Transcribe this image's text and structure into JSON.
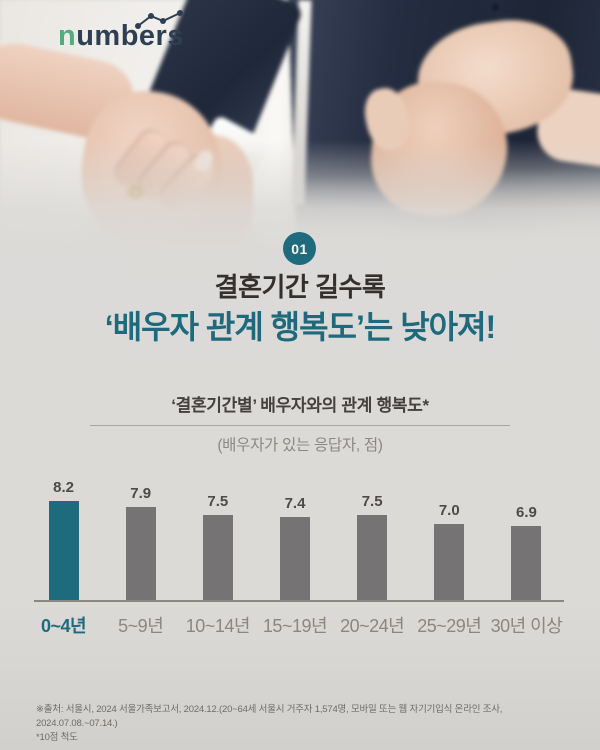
{
  "colors": {
    "background": "#dcdad7",
    "accent_teal": "#1d6b7c",
    "bar_gray": "#767374",
    "headline_dark": "#33302e",
    "logo_green": "#4fae7c",
    "logo_navy": "#2e3f54",
    "suit_navy": "#222c40",
    "skin_tone": "#e4c0a9"
  },
  "logo": {
    "first_letter": "n",
    "rest": "umbers"
  },
  "badge": {
    "label": "01"
  },
  "headline": {
    "line1_regular": "결혼기간 ",
    "line1_bold": "길수록",
    "line2": "‘배우자 관계 행복도’는 낮아져!"
  },
  "chart_header": {
    "title": "‘결혼기간별’ 배우자와의 관계 행복도*",
    "subtitle": "(배우자가 있는 응답자, 점)"
  },
  "chart_data": {
    "type": "bar",
    "title": "‘결혼기간별’ 배우자와의 관계 행복도*",
    "subtitle": "(배우자가 있는 응답자, 점)",
    "categories": [
      "0~4년",
      "5~9년",
      "10~14년",
      "15~19년",
      "20~24년",
      "25~29년",
      "30년 이상"
    ],
    "values": [
      8.2,
      7.9,
      7.5,
      7.4,
      7.5,
      7.0,
      6.9
    ],
    "highlight_index": 0,
    "value_labels": true,
    "grid": false,
    "legend": false,
    "ylim": [
      3,
      8.5
    ],
    "unit": "점(10점 척도)",
    "bar_color": "#767374",
    "highlight_color": "#1d6b7c"
  },
  "footnote": {
    "line1": "※출처: 서울시, 2024 서울가족보고서, 2024.12.(20~64세 서울시 거주자 1,574명, 모바일 또는 웹 자기기입식 온라인 조사, 2024.07.08.~07.14.)",
    "line2": "*10점 척도"
  }
}
